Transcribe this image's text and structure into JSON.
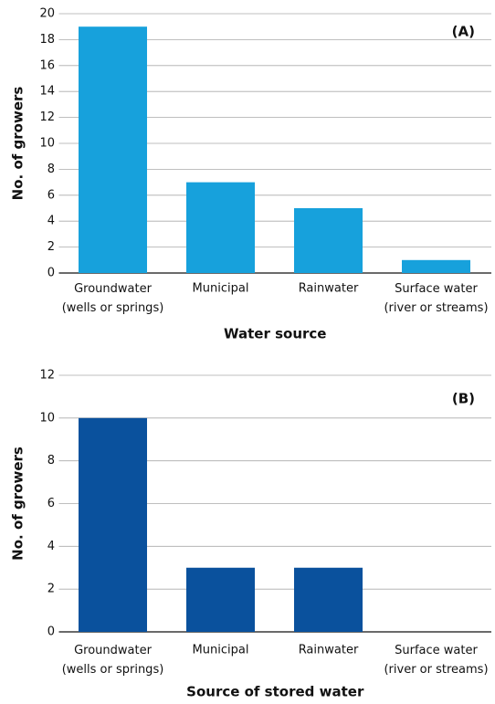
{
  "chart_data": [
    {
      "type": "bar",
      "annotation": "(A)",
      "xlabel": "Water source",
      "ylabel": "No. of growers",
      "categories": [
        "Groundwater\n(wells or springs)",
        "Municipal",
        "Rainwater",
        "Surface water\n(river or streams)"
      ],
      "values": [
        19,
        7,
        5,
        1
      ],
      "color": "#17a1dc",
      "ylim": [
        0,
        20
      ],
      "yticks": [
        0,
        2,
        4,
        6,
        8,
        10,
        12,
        14,
        16,
        18,
        20
      ],
      "grid": true
    },
    {
      "type": "bar",
      "annotation": "(B)",
      "xlabel": "Source of stored water",
      "ylabel": "No. of growers",
      "categories": [
        "Groundwater\n(wells or springs)",
        "Municipal",
        "Rainwater",
        "Surface water\n(river or streams)"
      ],
      "values": [
        10,
        3,
        3,
        0
      ],
      "color": "#0a519d",
      "ylim": [
        0,
        12
      ],
      "yticks": [
        0,
        2,
        4,
        6,
        8,
        10,
        12
      ],
      "grid": true
    }
  ]
}
